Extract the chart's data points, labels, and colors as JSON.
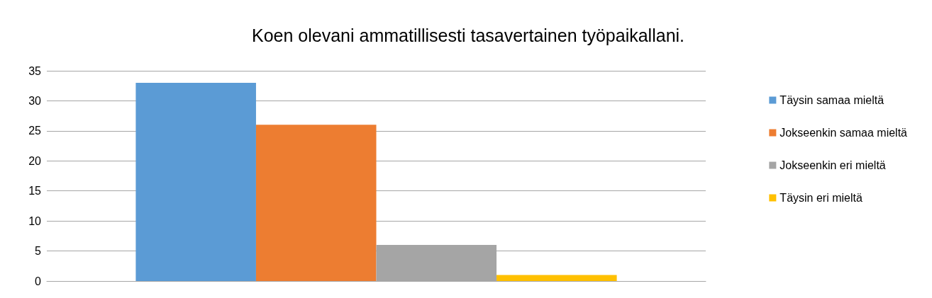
{
  "chart_data": {
    "type": "bar",
    "title": "Koen olevani ammatillisesti tasavertainen työpaikallani.",
    "categories": [
      null
    ],
    "series": [
      {
        "name": "Täysin samaa mieltä",
        "color": "#5b9bd5",
        "values": [
          33
        ]
      },
      {
        "name": "Jokseenkin samaa mieltä",
        "color": "#ed7d31",
        "values": [
          26
        ]
      },
      {
        "name": "Jokseenkin eri mieltä",
        "color": "#a5a5a5",
        "values": [
          6
        ]
      },
      {
        "name": "Täysin eri mieltä",
        "color": "#ffc000",
        "values": [
          1
        ]
      }
    ],
    "ylim": [
      0,
      35
    ],
    "yticks": [
      0,
      5,
      10,
      15,
      20,
      25,
      30,
      35
    ],
    "grid": "y",
    "legend": "right"
  }
}
